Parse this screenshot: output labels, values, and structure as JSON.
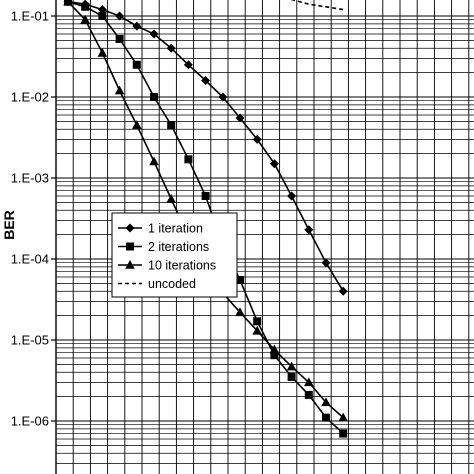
{
  "chart_data": {
    "type": "line",
    "title": "",
    "xlabel": "",
    "ylabel": "BER",
    "y_scale": "log",
    "ylim": [
      6e-07,
      0.17
    ],
    "xlim": [
      0,
      26
    ],
    "grid": true,
    "legend_position": "lower-left",
    "y_ticks": [
      {
        "value": 0.1,
        "label": "1.E-01"
      },
      {
        "value": 0.01,
        "label": "1.E-02"
      },
      {
        "value": 0.001,
        "label": "1.E-03"
      },
      {
        "value": 0.0001,
        "label": "1.E-04"
      },
      {
        "value": 1e-05,
        "label": "1.E-05"
      },
      {
        "value": 1e-06,
        "label": "1.E-06"
      }
    ],
    "series": [
      {
        "name": "1 iteration",
        "marker": "diamond",
        "line": "solid",
        "x": [
          10,
          11,
          12,
          13,
          14,
          15,
          16,
          17,
          18,
          19,
          20,
          21,
          22,
          23,
          24,
          25,
          26
        ],
        "y": [
          0.15,
          0.14,
          0.12,
          0.1,
          0.075,
          0.06,
          0.04,
          0.025,
          0.016,
          0.01,
          0.0055,
          0.003,
          0.0015,
          0.0006,
          0.00023,
          9e-05,
          4e-05
        ]
      },
      {
        "name": "2 iterations",
        "marker": "square",
        "line": "solid",
        "x": [
          10,
          11,
          12,
          13,
          14,
          15,
          16,
          17,
          18,
          19,
          20,
          21,
          22,
          23,
          24,
          25,
          26
        ],
        "y": [
          0.15,
          0.13,
          0.1,
          0.052,
          0.025,
          0.01,
          0.0045,
          0.0017,
          0.0006,
          0.00015,
          5.5e-05,
          1.7e-05,
          6.5e-06,
          3.5e-06,
          2.1e-06,
          1.1e-06,
          7e-07
        ]
      },
      {
        "name": "10 iterations",
        "marker": "triangle",
        "line": "solid",
        "x": [
          10,
          11,
          12,
          13,
          14,
          15,
          16,
          17,
          18,
          19,
          20,
          21,
          22,
          23,
          24,
          25,
          26
        ],
        "y": [
          0.15,
          0.09,
          0.035,
          0.012,
          0.0045,
          0.0016,
          0.00055,
          0.00019,
          6.8e-05,
          3.8e-05,
          2.2e-05,
          1.3e-05,
          7.6e-06,
          4.7e-06,
          3e-06,
          1.7e-06,
          1.1e-06
        ]
      },
      {
        "name": "uncoded",
        "marker": "none",
        "line": "dashed",
        "x": [
          21,
          22,
          23,
          24,
          25,
          26
        ],
        "y": [
          0.2,
          0.17,
          0.16,
          0.14,
          0.13,
          0.12
        ]
      }
    ]
  }
}
